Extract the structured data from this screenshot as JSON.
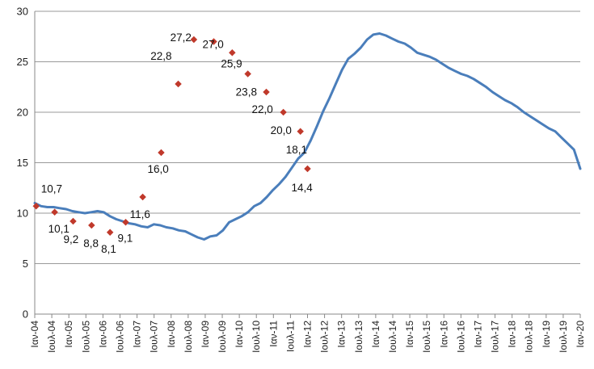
{
  "chart_data": {
    "type": "line",
    "title": "",
    "xlabel": "",
    "ylabel": "",
    "ylim": [
      0,
      30
    ],
    "yticks": [
      0,
      5,
      10,
      15,
      20,
      25,
      30
    ],
    "grid": true,
    "legend": "none",
    "colors": {
      "line": "#4a7ebb",
      "marker": "#c0392b",
      "grid": "#9a9a9a",
      "axis": "#888888"
    },
    "xtick_labels": [
      "Ιαν-04",
      "Ιουλ-04",
      "Ιαν-05",
      "Ιουλ-05",
      "Ιαν-06",
      "Ιουλ-06",
      "Ιαν-07",
      "Ιουλ-07",
      "Ιαν-08",
      "Ιουλ-08",
      "Ιαν-09",
      "Ιουλ-09",
      "Ιαν-10",
      "Ιουλ-10",
      "Ιαν-11",
      "Ιουλ-11",
      "Ιαν-12",
      "Ιουλ-12",
      "Ιαν-13",
      "Ιουλ-13",
      "Ιαν-14",
      "Ιουλ-14",
      "Ιαν-15",
      "Ιουλ-15",
      "Ιαν-16",
      "Ιουλ-16",
      "Ιαν-17",
      "Ιουλ-17",
      "Ιαν-18",
      "Ιουλ-18",
      "Ιαν-19",
      "Ιουλ-19",
      "Ιαν-20"
    ],
    "x_start": "Ιαν-04",
    "x_end": "Ιαν-20",
    "series": [
      {
        "values": [
          11.0,
          10.7,
          10.6,
          10.6,
          10.5,
          10.4,
          10.2,
          10.1,
          10.0,
          10.1,
          10.2,
          10.1,
          9.7,
          9.4,
          9.2,
          9.0,
          8.9,
          8.7,
          8.6,
          8.9,
          8.8,
          8.6,
          8.5,
          8.3,
          8.2,
          7.9,
          7.6,
          7.4,
          7.7,
          7.8,
          8.3,
          9.1,
          9.4,
          9.7,
          10.1,
          10.7,
          11.0,
          11.6,
          12.3,
          12.9,
          13.6,
          14.5,
          15.4,
          16.0,
          17.2,
          18.6,
          20.1,
          21.4,
          22.8,
          24.2,
          25.3,
          25.8,
          26.4,
          27.2,
          27.7,
          27.8,
          27.6,
          27.3,
          27.0,
          26.8,
          26.4,
          25.9,
          25.7,
          25.5,
          25.2,
          24.8,
          24.4,
          24.1,
          23.8,
          23.6,
          23.3,
          22.9,
          22.5,
          22.0,
          21.6,
          21.2,
          20.9,
          20.5,
          20.0,
          19.6,
          19.2,
          18.8,
          18.4,
          18.1,
          17.5,
          16.9,
          16.3,
          14.4
        ]
      }
    ],
    "data_labels": [
      {
        "x": 0.083,
        "text": "10,7",
        "value": 10.7
      },
      {
        "x": 1.167,
        "text": "10,1",
        "value": 10.1
      },
      {
        "x": 2.25,
        "text": "9,2",
        "value": 9.2
      },
      {
        "x": 3.333,
        "text": "8,8",
        "value": 8.8
      },
      {
        "x": 4.417,
        "text": "8,1",
        "value": 8.1
      },
      {
        "x": 5.333,
        "text": "9,1",
        "value": 9.1
      },
      {
        "x": 6.333,
        "text": "11,6",
        "value": 11.6
      },
      {
        "x": 7.417,
        "text": "16,0",
        "value": 16.0
      },
      {
        "x": 8.417,
        "text": "22,8",
        "value": 22.8
      },
      {
        "x": 9.333,
        "text": "27,2",
        "value": 27.2
      },
      {
        "x": 10.5,
        "text": "27,0",
        "value": 27.0
      },
      {
        "x": 11.583,
        "text": "25,9",
        "value": 25.9
      },
      {
        "x": 12.5,
        "text": "23,8",
        "value": 23.8
      },
      {
        "x": 13.583,
        "text": "22,0",
        "value": 22.0
      },
      {
        "x": 14.583,
        "text": "20,0",
        "value": 20.0
      },
      {
        "x": 15.583,
        "text": "18,1",
        "value": 18.1
      },
      {
        "x": 16.0,
        "text": "14,4",
        "value": 14.4
      }
    ]
  }
}
